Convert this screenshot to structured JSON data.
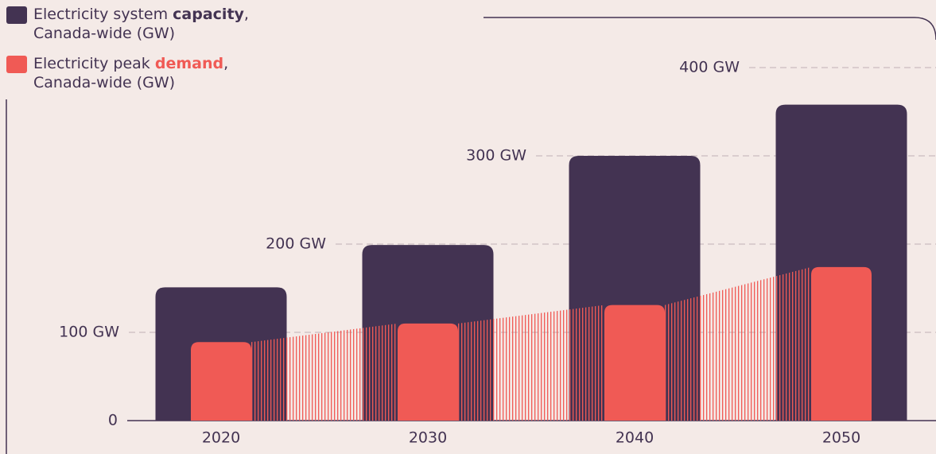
{
  "chart_data": {
    "type": "bar",
    "categories": [
      "2020",
      "2030",
      "2040",
      "2050"
    ],
    "series": [
      {
        "name": "Electricity system capacity, Canada-wide (GW)",
        "emphasis": "capacity",
        "color": "#433352",
        "values": [
          151,
          199,
          300,
          358
        ]
      },
      {
        "name": "Electricity peak demand, Canada-wide (GW)",
        "emphasis": "demand",
        "color": "#f05a55",
        "values": [
          89,
          110,
          131,
          174
        ]
      }
    ],
    "ylim": [
      0,
      400
    ],
    "yticks": [
      0,
      {
        "value": 100,
        "label": "100 GW"
      },
      {
        "value": 200,
        "label": "200 GW"
      },
      {
        "value": 300,
        "label": "300 GW"
      },
      {
        "value": 400,
        "label": "400 GW"
      }
    ],
    "grid": true,
    "legend": "top-left"
  }
}
